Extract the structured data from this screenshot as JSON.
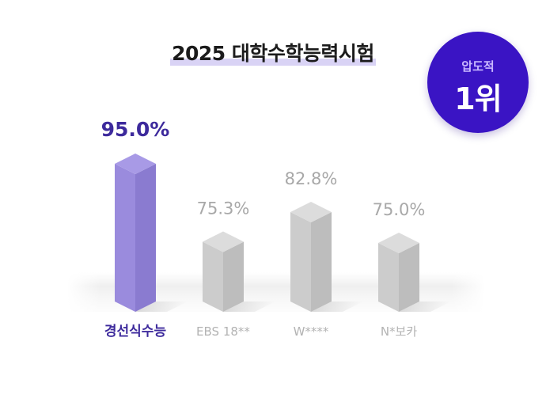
{
  "title": "2025 대학수학능력시험",
  "badge": {
    "sub": "압도적",
    "main": "1위"
  },
  "colors": {
    "highlight_top": "#a89ae6",
    "highlight_front": "#9a8bdd",
    "highlight_side": "#8a7bd0",
    "highlight_text": "#3d2a9c",
    "gray_top": "#dcdcdc",
    "gray_front": "#cccccc",
    "gray_side": "#bdbdbd",
    "gray_text": "#a8a8a8",
    "badge": "#3a14c4"
  },
  "chart_data": {
    "type": "bar",
    "categories": [
      "경선식수능",
      "EBS 18**",
      "W****",
      "N*보카"
    ],
    "values": [
      95.0,
      75.3,
      82.8,
      75.0
    ],
    "value_labels": [
      "95.0%",
      "75.3%",
      "82.8%",
      "75.0%"
    ],
    "highlight_index": 0,
    "ylim": [
      60,
      100
    ],
    "grid": false,
    "legend": "none"
  }
}
